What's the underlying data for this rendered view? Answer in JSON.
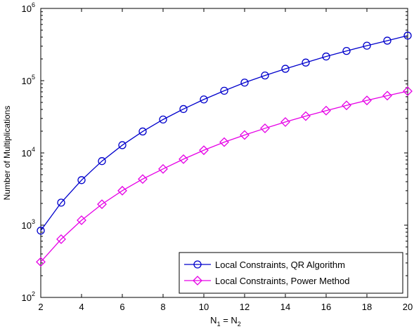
{
  "chart_data": {
    "type": "line",
    "title": "",
    "xlabel": {
      "base": "N",
      "sub1": "1",
      "mid": " = N",
      "sub2": "2"
    },
    "ylabel": "Number of Multiplications",
    "x": [
      2,
      3,
      4,
      5,
      6,
      7,
      8,
      9,
      10,
      11,
      12,
      13,
      14,
      15,
      16,
      17,
      18,
      19,
      20
    ],
    "xlim": [
      2,
      20
    ],
    "ylim": [
      100,
      1000000
    ],
    "yscale": "log",
    "xticks": [
      2,
      4,
      6,
      8,
      10,
      12,
      14,
      16,
      18,
      20
    ],
    "yticks": [
      {
        "value": 100,
        "base": "10",
        "exp": "2"
      },
      {
        "value": 1000,
        "base": "10",
        "exp": "3"
      },
      {
        "value": 10000,
        "base": "10",
        "exp": "4"
      },
      {
        "value": 100000,
        "base": "10",
        "exp": "5"
      },
      {
        "value": 1000000,
        "base": "10",
        "exp": "6"
      }
    ],
    "grid": false,
    "legend_position": "bottom-right",
    "series": [
      {
        "name": "Local Constraints, QR Algorithm",
        "color": "#0000cc",
        "marker": "circle",
        "values": [
          840,
          2050,
          4200,
          7700,
          12800,
          19800,
          29000,
          40500,
          55000,
          72500,
          94000,
          118000,
          146000,
          178000,
          216000,
          258000,
          305000,
          358000,
          420000
        ]
      },
      {
        "name": "Local Constraints, Power Method",
        "color": "#e600e6",
        "marker": "diamond",
        "values": [
          310,
          640,
          1170,
          1950,
          3000,
          4350,
          6000,
          8200,
          10900,
          14100,
          17700,
          21900,
          26800,
          32300,
          38500,
          45500,
          53300,
          62000,
          71500
        ]
      }
    ]
  }
}
